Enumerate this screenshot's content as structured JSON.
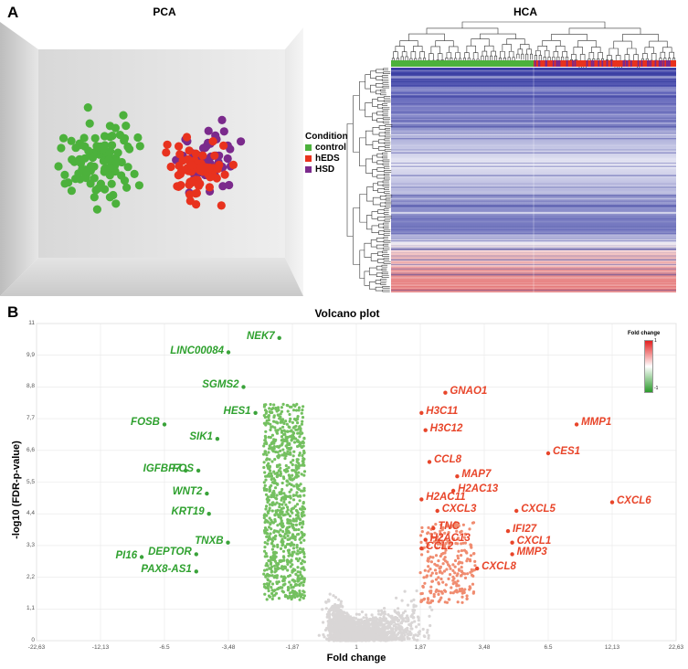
{
  "panels": {
    "a_label": "A",
    "b_label": "B",
    "pca_title": "PCA",
    "hca_title": "HCA",
    "volcano_title": "Volcano plot"
  },
  "legend": {
    "title": "Condition",
    "items": [
      {
        "label": "control",
        "color": "#4cb13c"
      },
      {
        "label": "hEDS",
        "color": "#e8321e"
      },
      {
        "label": "HSD",
        "color": "#7b2a8c"
      }
    ]
  },
  "colorbar": {
    "title": "Fold change",
    "max_label": "1",
    "min_label": "-1"
  },
  "chart_data": [
    {
      "type": "scatter",
      "title": "PCA",
      "series": [
        {
          "name": "control",
          "count_shown": "approx. 100 points, left cluster"
        },
        {
          "name": "hEDS",
          "count_shown": "approx. 70 points, right cluster"
        },
        {
          "name": "HSD",
          "count_shown": "approx. 50 points, right cluster"
        }
      ]
    },
    {
      "type": "heatmap",
      "title": "HCA",
      "column_groups": [
        "control",
        "hEDS / HSD"
      ]
    },
    {
      "type": "scatter",
      "title": "Volcano plot",
      "xlabel": "Fold change",
      "ylabel": "-log10 (FDR-p-value)",
      "x_ticks": [
        "-22,63",
        "-12,13",
        "-6.5",
        "-3,48",
        "-1,87",
        "1",
        "1,87",
        "3,48",
        "6.5",
        "12,13",
        "22,63"
      ],
      "y_ticks": [
        "0",
        "1,1",
        "2,2",
        "3,3",
        "4,4",
        "5,5",
        "6,6",
        "7,7",
        "8,8",
        "9,9",
        "11"
      ],
      "y_range": [
        0,
        11
      ],
      "down_genes": [
        {
          "name": "NEK7",
          "fc": -2.2,
          "y": 10.5
        },
        {
          "name": "LINC00084",
          "fc": -3.48,
          "y": 10.0
        },
        {
          "name": "SGMS2",
          "fc": -3.1,
          "y": 8.8
        },
        {
          "name": "HES1",
          "fc": -2.8,
          "y": 7.9
        },
        {
          "name": "FOSB",
          "fc": -6.5,
          "y": 7.5
        },
        {
          "name": "SIK1",
          "fc": -4.0,
          "y": 7.0
        },
        {
          "name": "IGFBP7",
          "fc": -5.5,
          "y": 5.9
        },
        {
          "name": "FOS",
          "fc": -4.9,
          "y": 5.9
        },
        {
          "name": "WNT2",
          "fc": -4.5,
          "y": 5.1
        },
        {
          "name": "KRT19",
          "fc": -4.4,
          "y": 4.4
        },
        {
          "name": "TNXB",
          "fc": -3.5,
          "y": 3.4
        },
        {
          "name": "PI16",
          "fc": -8.5,
          "y": 2.9
        },
        {
          "name": "DEPTOR",
          "fc": -5.0,
          "y": 3.0
        },
        {
          "name": "PAX8-AS1",
          "fc": -5.0,
          "y": 2.4
        }
      ],
      "up_genes": [
        {
          "name": "GNAO1",
          "fc": 2.5,
          "y": 8.6
        },
        {
          "name": "H3C11",
          "fc": 1.9,
          "y": 7.9
        },
        {
          "name": "H3C12",
          "fc": 2.0,
          "y": 7.3
        },
        {
          "name": "MMP1",
          "fc": 9.0,
          "y": 7.5
        },
        {
          "name": "CES1",
          "fc": 6.5,
          "y": 6.5
        },
        {
          "name": "CCL8",
          "fc": 2.1,
          "y": 6.2
        },
        {
          "name": "MAP7",
          "fc": 2.8,
          "y": 5.7
        },
        {
          "name": "H2AC13",
          "fc": 2.7,
          "y": 5.2
        },
        {
          "name": "H2AC11",
          "fc": 1.9,
          "y": 4.9
        },
        {
          "name": "CXCL3",
          "fc": 2.3,
          "y": 4.5
        },
        {
          "name": "CXCL5",
          "fc": 5.0,
          "y": 4.5
        },
        {
          "name": "CXCL6",
          "fc": 12.13,
          "y": 4.8
        },
        {
          "name": "TNC",
          "fc": 2.2,
          "y": 3.9
        },
        {
          "name": "IFI27",
          "fc": 4.6,
          "y": 3.8
        },
        {
          "name": "H2AC13",
          "fc": 2.0,
          "y": 3.5
        },
        {
          "name": "CXCL1",
          "fc": 4.8,
          "y": 3.4
        },
        {
          "name": "CCL2",
          "fc": 1.9,
          "y": 3.2
        },
        {
          "name": "MMP3",
          "fc": 4.8,
          "y": 3.0
        },
        {
          "name": "CXCL8",
          "fc": 3.3,
          "y": 2.5
        }
      ]
    }
  ]
}
